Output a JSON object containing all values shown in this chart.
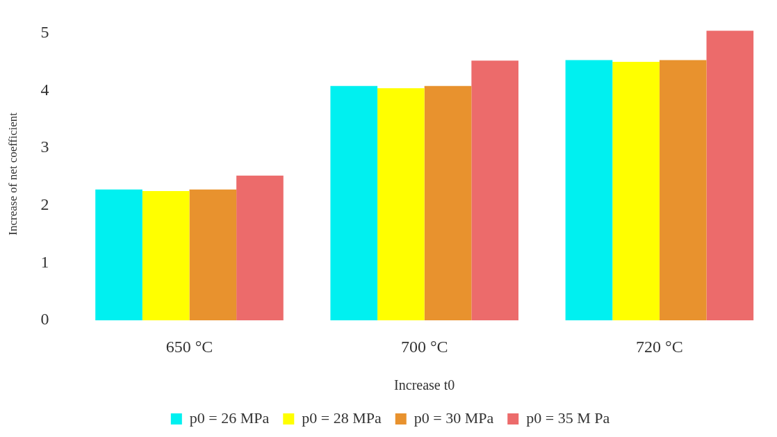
{
  "chart_data": {
    "type": "bar",
    "xlabel": "Increase t0",
    "ylabel": "Increase of net coefficient",
    "categories": [
      "650 °C",
      "700 °C",
      "720 °C"
    ],
    "series": [
      {
        "name": "p0 = 26 MPa",
        "color": "#00f0f0",
        "values": [
          2.28,
          4.08,
          4.53
        ]
      },
      {
        "name": "p0 = 28 MPa",
        "color": "#ffff00",
        "values": [
          2.25,
          4.04,
          4.5
        ]
      },
      {
        "name": "p0 = 30 MPa",
        "color": "#e8922e",
        "values": [
          2.28,
          4.08,
          4.53
        ]
      },
      {
        "name": "p0 = 35 M Pa",
        "color": "#ec6b6b",
        "values": [
          2.52,
          4.52,
          5.04
        ]
      }
    ],
    "ylim": [
      0,
      5.1
    ],
    "yticks": [
      0,
      1,
      2,
      3,
      4,
      5
    ],
    "grid": false,
    "legend": "bottom"
  }
}
